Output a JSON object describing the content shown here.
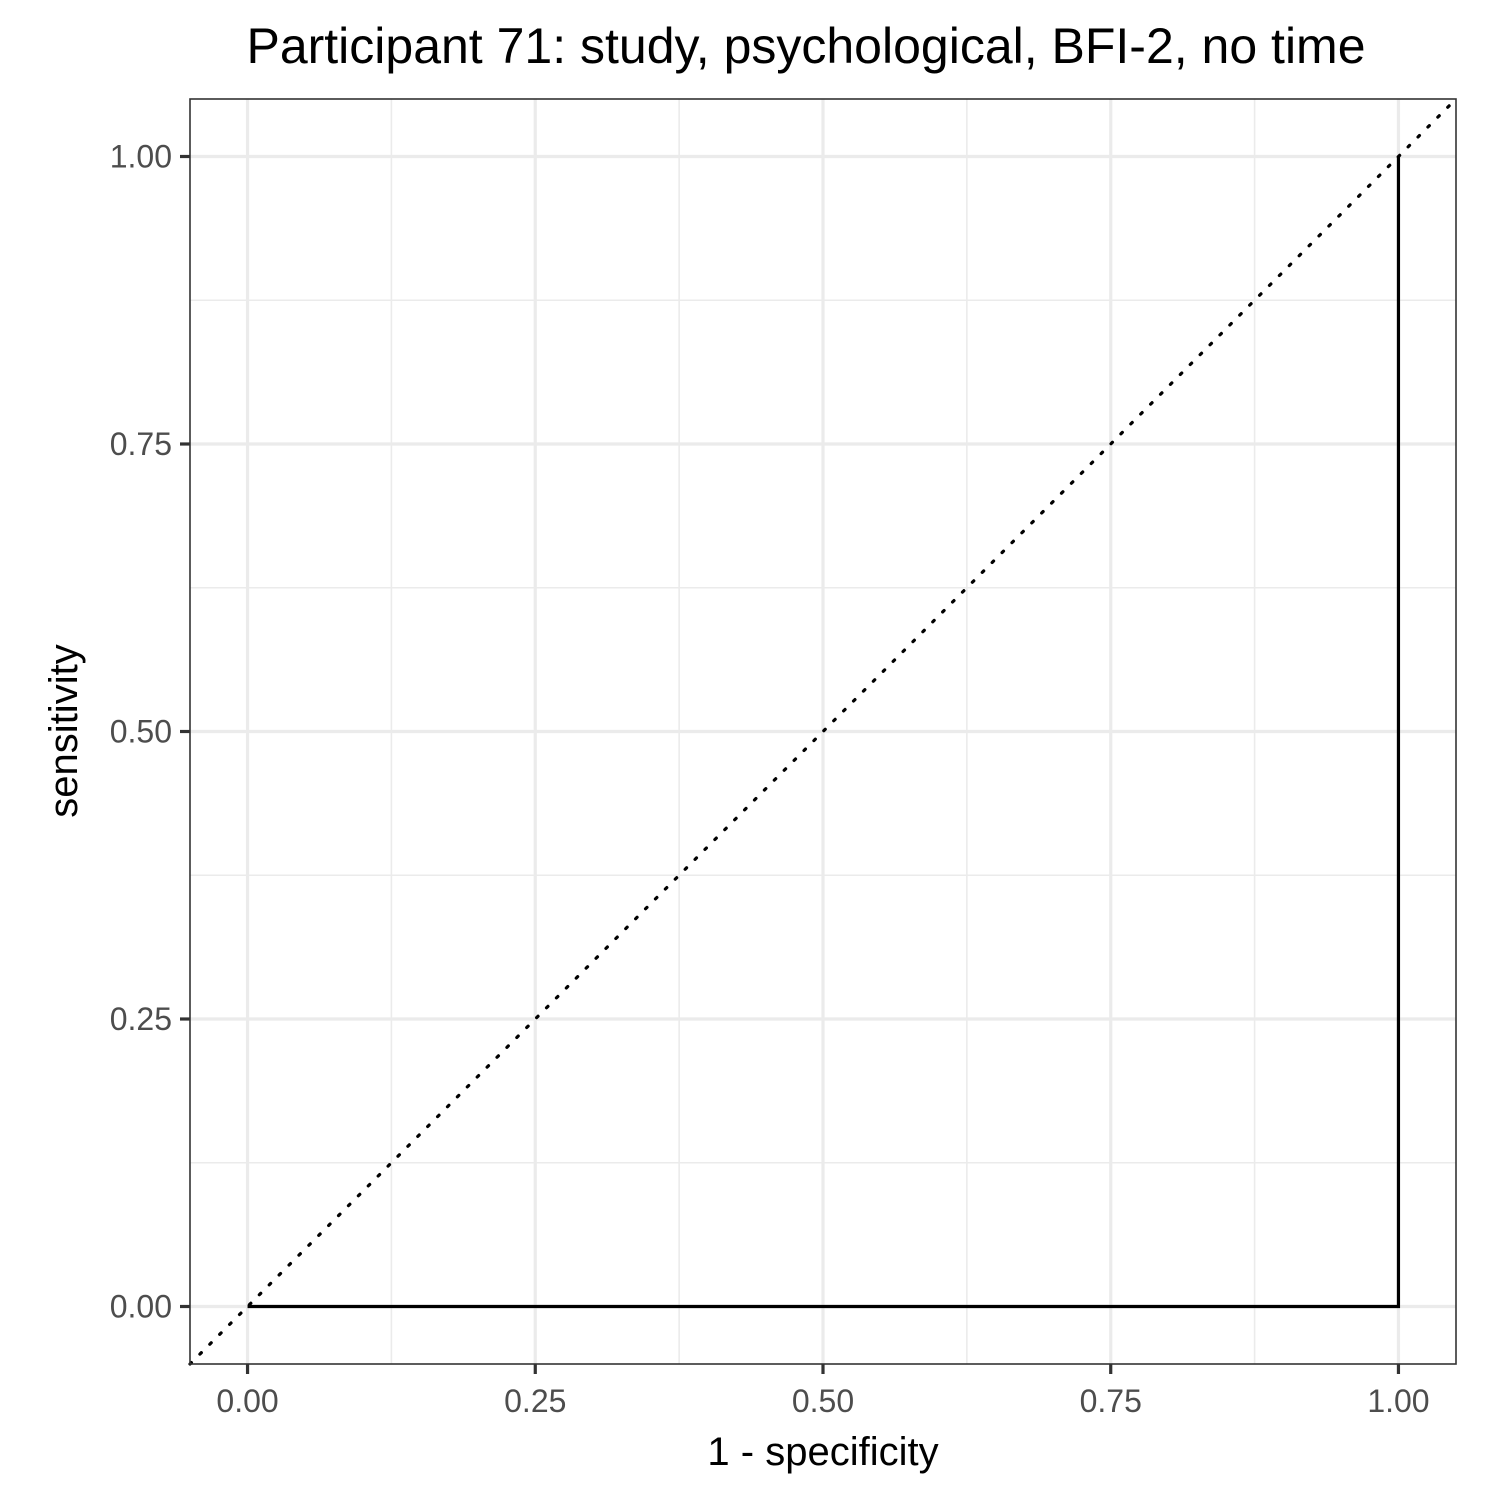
{
  "chart_data": {
    "type": "line",
    "title": "Participant 71: study, psychological, BFI-2, no time",
    "xlabel": "1 - specificity",
    "ylabel": "sensitivity",
    "xlim": [
      -0.05,
      1.05
    ],
    "ylim": [
      -0.05,
      1.05
    ],
    "x_ticks": [
      0,
      0.25,
      0.5,
      0.75,
      1
    ],
    "y_ticks": [
      0,
      0.25,
      0.5,
      0.75,
      1
    ],
    "x_tick_labels": [
      "0.00",
      "0.25",
      "0.50",
      "0.75",
      "1.00"
    ],
    "y_tick_labels": [
      "0.00",
      "0.25",
      "0.50",
      "0.75",
      "1.00"
    ],
    "grid": true,
    "series": [
      {
        "style": "solid",
        "x": [
          0,
          1,
          1
        ],
        "y": [
          0,
          0,
          1
        ]
      }
    ],
    "reference_line": {
      "style": "dotted",
      "slope": 1,
      "intercept": 0
    },
    "colors": {
      "line": "#000000",
      "grid": "#ebebeb",
      "panel_border": "#333333",
      "tick_label": "#4d4d4d"
    }
  }
}
